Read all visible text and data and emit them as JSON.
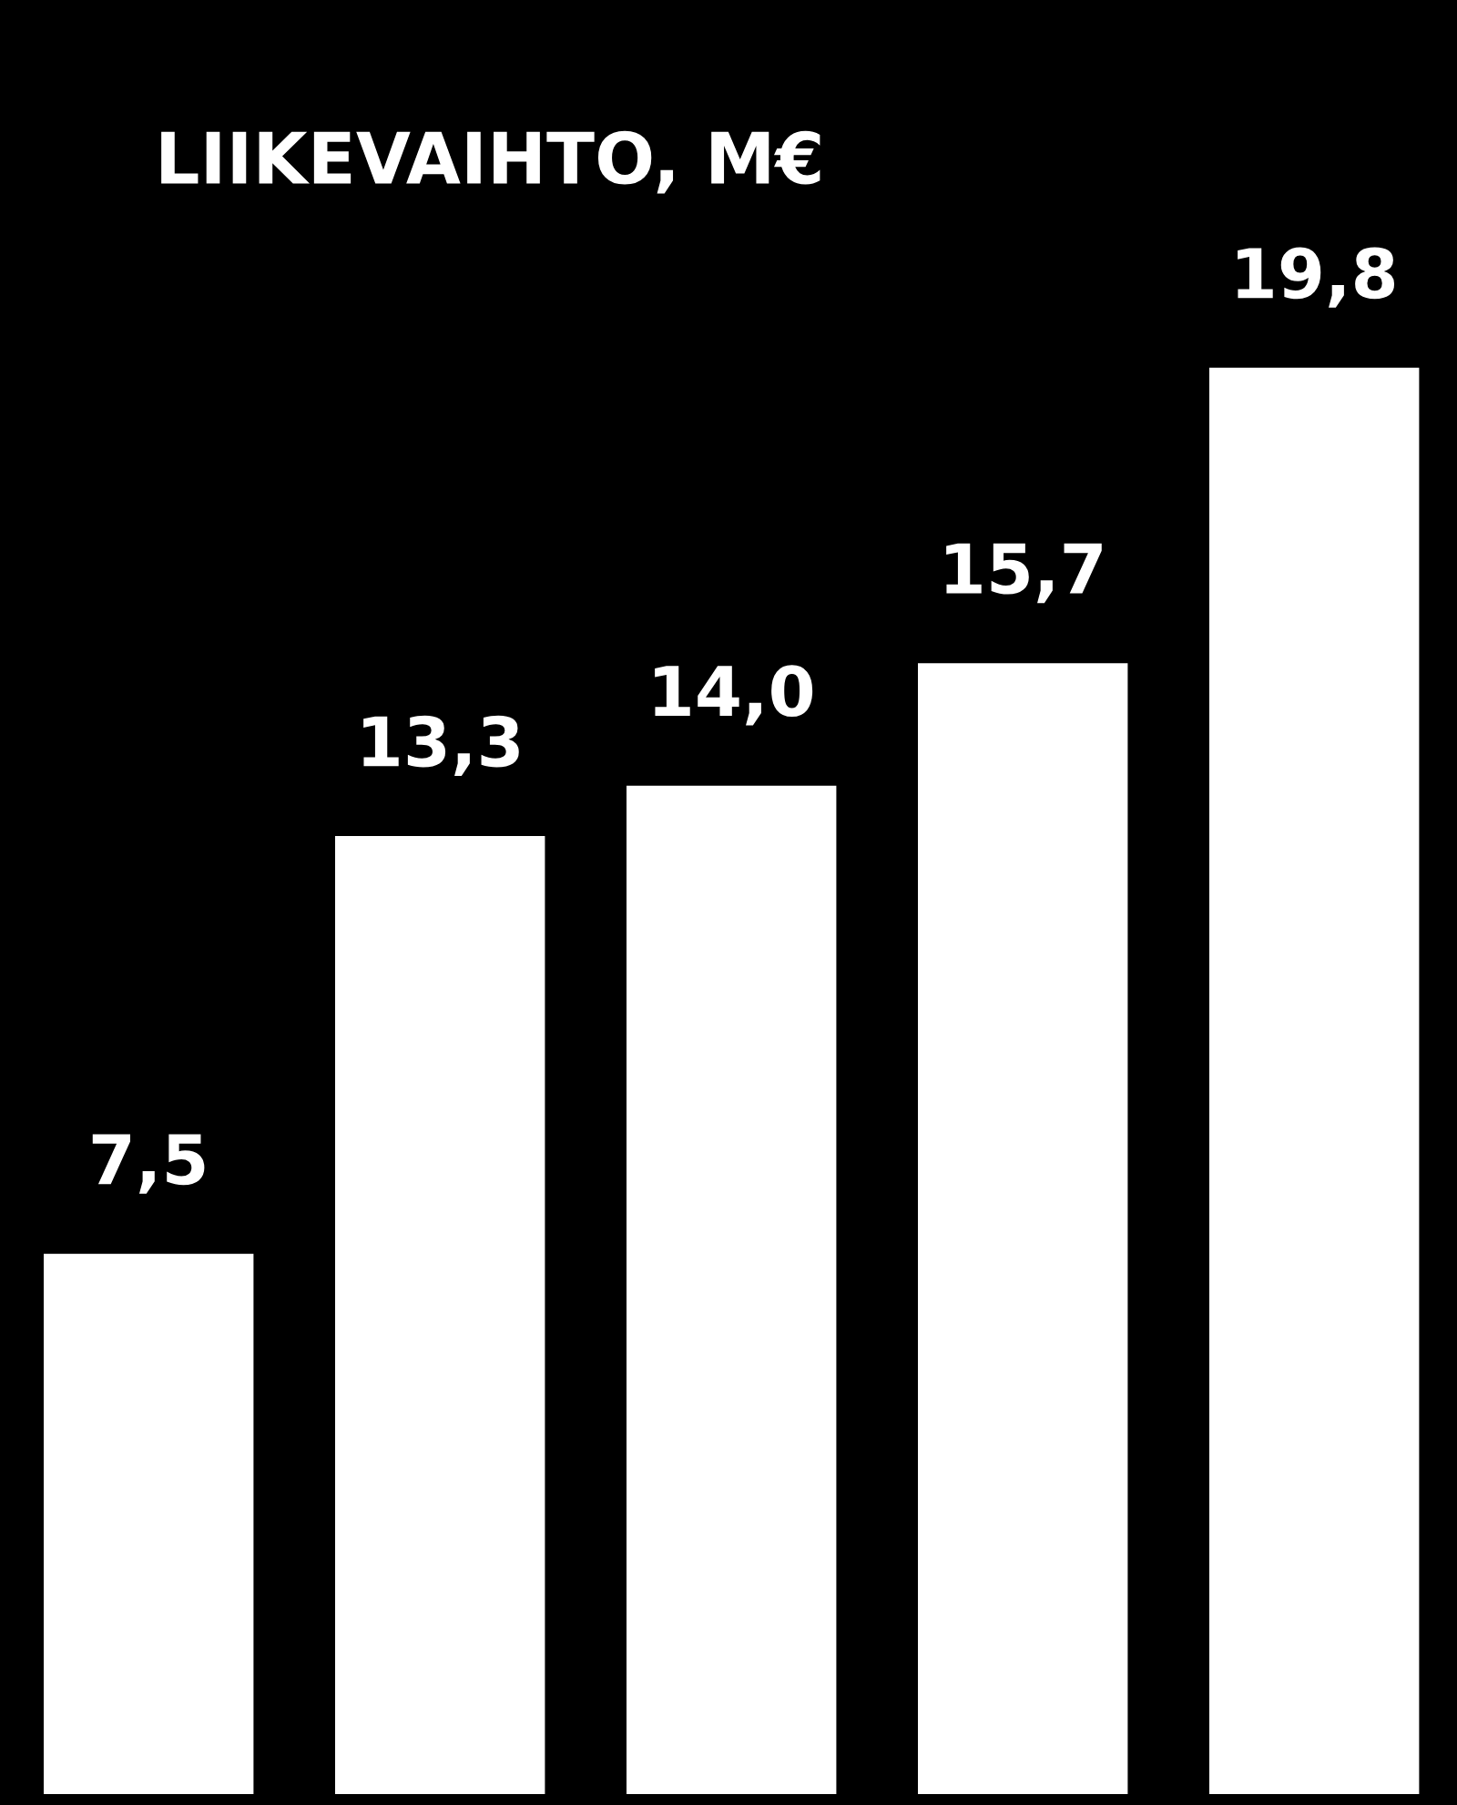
{
  "chart_data": {
    "type": "bar",
    "title": "LIIKEVAIHTO, M€",
    "categories": [
      null,
      null,
      null,
      null,
      null
    ],
    "values": [
      7.5,
      13.3,
      14.0,
      15.7,
      19.8
    ],
    "value_labels": [
      "7,5",
      "13,3",
      "14,0",
      "15,7",
      "19,8"
    ],
    "color": "#ffffff"
  }
}
